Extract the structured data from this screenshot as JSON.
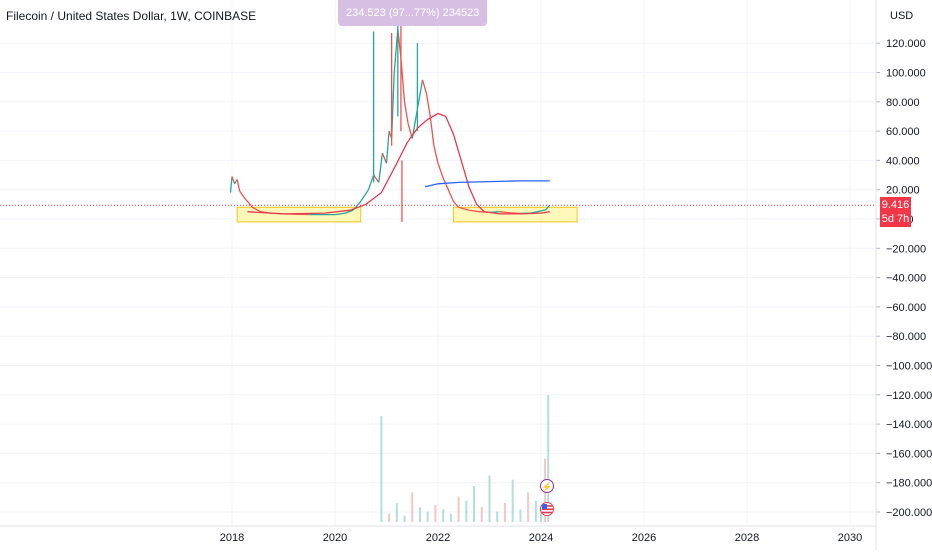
{
  "header": {
    "title": "Filecoin / United States Dollar, 1W, COINBASE",
    "currency": "USD"
  },
  "tooltip": {
    "text": "234.523 (97...77%) 234523"
  },
  "price_tag": {
    "value": "9.416",
    "countdown": "5d 7h"
  },
  "icons": {
    "flash": "lightning-icon",
    "flag": "us-flag-icon"
  },
  "colors": {
    "candle_up": "#26a69a",
    "candle_down": "#ef5350",
    "ma_red": "#e53950",
    "ma_blue": "#2962ff",
    "range_box_fill": "#fff59d",
    "range_box_stroke": "#f5c518",
    "price_line": "#f23645",
    "volume_up": "#b2dfdb",
    "volume_down": "#f5c6c6"
  },
  "chart_data": {
    "type": "candlestick",
    "x_ticks": [
      "2018",
      "2020",
      "2022",
      "2024",
      "2026",
      "2028",
      "2030"
    ],
    "y_ticks": [
      "120.000",
      "100.000",
      "80.000",
      "60.000",
      "40.000",
      "20.000",
      "0.000",
      "−20.000",
      "−40.000",
      "−60.000",
      "−80.000",
      "−100.000",
      "−120.000",
      "−140.000",
      "−160.000",
      "−180.000",
      "−200.000"
    ],
    "xlim": [
      2017.9,
      2031.0
    ],
    "ylim": [
      -205,
      140
    ],
    "last_price": 9.416,
    "price_path": [
      [
        2017.97,
        18
      ],
      [
        2018.0,
        29
      ],
      [
        2018.05,
        24
      ],
      [
        2018.1,
        27
      ],
      [
        2018.15,
        19
      ],
      [
        2018.25,
        14
      ],
      [
        2018.4,
        8
      ],
      [
        2018.55,
        5
      ],
      [
        2018.75,
        4
      ],
      [
        2019.0,
        3.5
      ],
      [
        2019.5,
        3
      ],
      [
        2020.0,
        3
      ],
      [
        2020.2,
        4
      ],
      [
        2020.35,
        6
      ],
      [
        2020.5,
        12
      ],
      [
        2020.65,
        20
      ],
      [
        2020.75,
        30
      ],
      [
        2020.85,
        25
      ],
      [
        2020.92,
        45
      ],
      [
        2021.0,
        38
      ],
      [
        2021.05,
        60
      ],
      [
        2021.1,
        55
      ],
      [
        2021.15,
        100
      ],
      [
        2021.22,
        130
      ],
      [
        2021.28,
        110
      ],
      [
        2021.35,
        80
      ],
      [
        2021.42,
        65
      ],
      [
        2021.5,
        55
      ],
      [
        2021.6,
        75
      ],
      [
        2021.7,
        95
      ],
      [
        2021.78,
        85
      ],
      [
        2021.85,
        70
      ],
      [
        2021.92,
        50
      ],
      [
        2022.0,
        38
      ],
      [
        2022.1,
        28
      ],
      [
        2022.2,
        20
      ],
      [
        2022.3,
        12
      ],
      [
        2022.4,
        8
      ],
      [
        2022.6,
        6
      ],
      [
        2022.8,
        5
      ],
      [
        2023.0,
        4.5
      ],
      [
        2023.2,
        5
      ],
      [
        2023.4,
        4.2
      ],
      [
        2023.6,
        3.8
      ],
      [
        2023.8,
        4
      ],
      [
        2024.0,
        5.5
      ],
      [
        2024.1,
        6.5
      ],
      [
        2024.17,
        9.4
      ]
    ],
    "wicks": [
      {
        "x": 2020.75,
        "low": 25,
        "high": 128
      },
      {
        "x": 2021.1,
        "low": 50,
        "high": 127
      },
      {
        "x": 2021.22,
        "low": 70,
        "high": 145
      },
      {
        "x": 2021.28,
        "low": 60,
        "high": 140
      },
      {
        "x": 2021.6,
        "low": 60,
        "high": 120
      },
      {
        "x": 2021.3,
        "low": -2,
        "high": 40
      }
    ],
    "ma_red": [
      [
        2018.3,
        5
      ],
      [
        2019.0,
        3.5
      ],
      [
        2019.8,
        4
      ],
      [
        2020.3,
        6
      ],
      [
        2020.6,
        10
      ],
      [
        2020.9,
        18
      ],
      [
        2021.2,
        38
      ],
      [
        2021.4,
        52
      ],
      [
        2021.6,
        62
      ],
      [
        2021.8,
        68
      ],
      [
        2022.0,
        72
      ],
      [
        2022.15,
        70
      ],
      [
        2022.3,
        58
      ],
      [
        2022.45,
        40
      ],
      [
        2022.6,
        22
      ],
      [
        2022.75,
        10
      ],
      [
        2022.9,
        5
      ],
      [
        2023.2,
        3.5
      ],
      [
        2023.6,
        3.5
      ],
      [
        2024.0,
        4
      ],
      [
        2024.17,
        5
      ]
    ],
    "ma_blue": [
      [
        2021.75,
        22
      ],
      [
        2022.0,
        24
      ],
      [
        2022.4,
        25
      ],
      [
        2023.0,
        25.5
      ],
      [
        2023.6,
        26
      ],
      [
        2024.17,
        26
      ]
    ],
    "range_boxes": [
      {
        "x0": 2018.1,
        "x1": 2020.5,
        "y0": -2,
        "y1": 8
      },
      {
        "x0": 2022.3,
        "x1": 2024.7,
        "y0": -2,
        "y1": 8
      }
    ],
    "volume": {
      "x": [
        2020.9,
        2021.05,
        2021.2,
        2021.35,
        2021.5,
        2021.65,
        2021.8,
        2021.95,
        2022.1,
        2022.25,
        2022.4,
        2022.55,
        2022.7,
        2022.85,
        2023.0,
        2023.15,
        2023.3,
        2023.45,
        2023.6,
        2023.75,
        2023.9,
        2024.0,
        2024.08,
        2024.14
      ],
      "values": [
        100,
        8,
        18,
        6,
        28,
        14,
        10,
        16,
        12,
        8,
        24,
        20,
        34,
        14,
        44,
        10,
        18,
        40,
        12,
        28,
        20,
        14,
        60,
        120
      ],
      "ylim": [
        0,
        120
      ]
    }
  }
}
